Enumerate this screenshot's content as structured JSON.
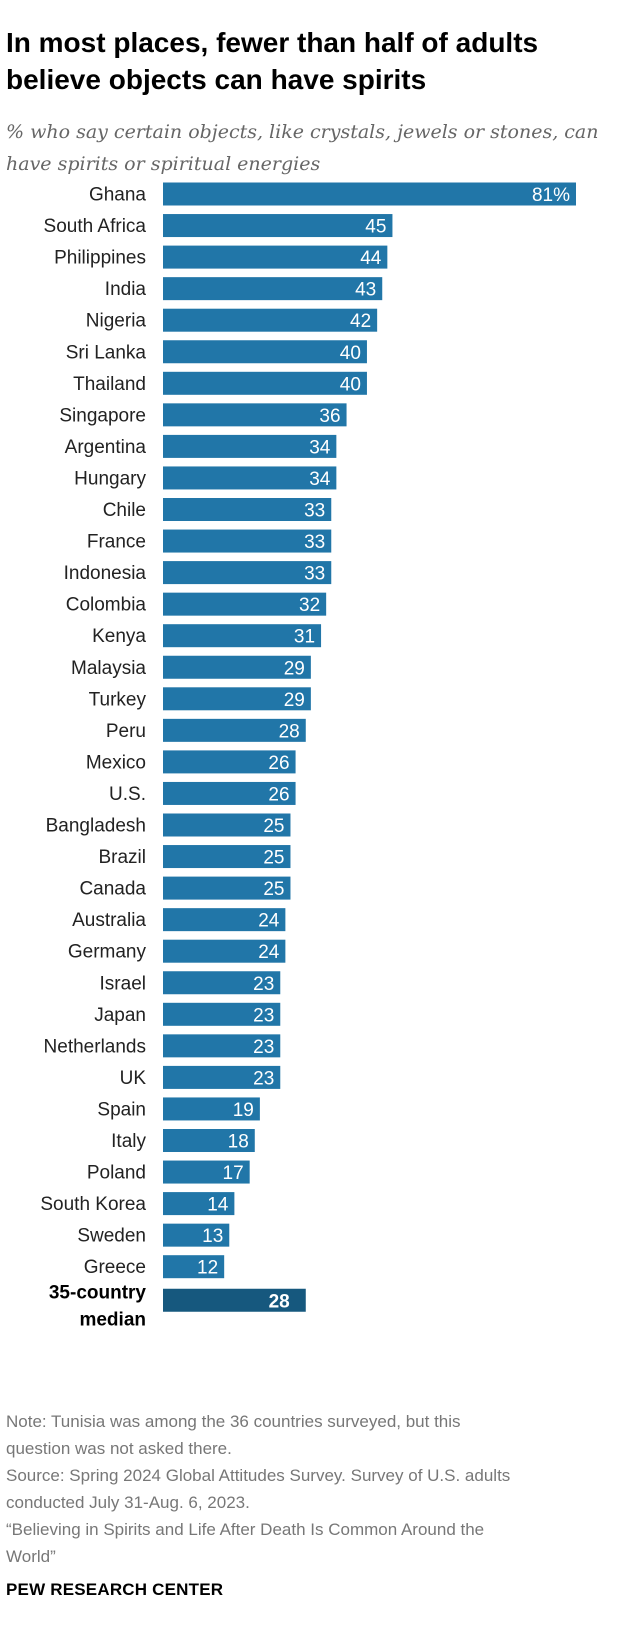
{
  "title": "In most places, fewer than half of adults believe objects can have spirits",
  "subtitle": "% who say certain objects, like crystals, jewels or stones, can have spirits or spiritual energies",
  "chart_data": {
    "type": "bar",
    "orientation": "horizontal",
    "categories": [
      "Ghana",
      "South Africa",
      "Philippines",
      "India",
      "Nigeria",
      "Sri Lanka",
      "Thailand",
      "Singapore",
      "Argentina",
      "Hungary",
      "Chile",
      "France",
      "Indonesia",
      "Colombia",
      "Kenya",
      "Malaysia",
      "Turkey",
      "Peru",
      "Mexico",
      "U.S.",
      "Bangladesh",
      "Brazil",
      "Canada",
      "Australia",
      "Germany",
      "Israel",
      "Japan",
      "Netherlands",
      "UK",
      "Spain",
      "Italy",
      "Poland",
      "South Korea",
      "Sweden",
      "Greece"
    ],
    "values": [
      81,
      45,
      44,
      43,
      42,
      40,
      40,
      36,
      34,
      34,
      33,
      33,
      33,
      32,
      31,
      29,
      29,
      28,
      26,
      26,
      25,
      25,
      25,
      24,
      24,
      23,
      23,
      23,
      23,
      19,
      18,
      17,
      14,
      13,
      12
    ],
    "value_labels": [
      "81%",
      "45",
      "44",
      "43",
      "42",
      "40",
      "40",
      "36",
      "34",
      "34",
      "33",
      "33",
      "33",
      "32",
      "31",
      "29",
      "29",
      "28",
      "26",
      "26",
      "25",
      "25",
      "25",
      "24",
      "24",
      "23",
      "23",
      "23",
      "23",
      "19",
      "18",
      "17",
      "14",
      "13",
      "12"
    ],
    "median": {
      "label_line1": "35-country",
      "label_line2": "median",
      "value": 28,
      "value_label": "28"
    },
    "xlim": [
      0,
      81
    ],
    "grid": false,
    "legend": "none",
    "colors": {
      "bar": "#2176a8",
      "median_bar": "#16587e",
      "bar_label": "#ffffff",
      "category_text": "#222222"
    }
  },
  "notes": {
    "note_line1": "Note: Tunisia was among the 36 countries surveyed, but this",
    "note_line2": "question was not asked there.",
    "source_line1": "Source: Spring 2024 Global Attitudes Survey. Survey of U.S. adults",
    "source_line2": "conducted July 31-Aug. 6, 2023.",
    "report_line1": "“Believing in Spirits and Life After Death Is Common Around the",
    "report_line2": "World”"
  },
  "brand": "PEW RESEARCH CENTER"
}
